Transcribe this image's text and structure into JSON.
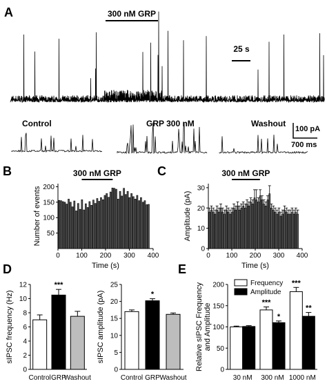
{
  "panel_labels": {
    "a": "A",
    "b": "B",
    "c": "C",
    "d": "D",
    "e": "E"
  },
  "panel_a": {
    "bar_label": "300 nM GRP",
    "time_scale": "25 s",
    "segments": [
      "Control",
      "GRP 300 nM",
      "Washout"
    ],
    "scale_current": "100 pA",
    "scale_time": "700 ms"
  },
  "chart_data": [
    {
      "id": "B",
      "type": "bar",
      "bar_label": "300 nM GRP",
      "bar_range": [
        100,
        230
      ],
      "xlabel": "Time (s)",
      "ylabel": "Number of events",
      "xlim": [
        0,
        400
      ],
      "ylim": [
        0,
        210
      ],
      "xticks": [
        "0",
        "100",
        "200",
        "300",
        "400"
      ],
      "yticks": [
        "50",
        "100",
        "150",
        "200"
      ],
      "x": [
        5,
        13,
        21,
        29,
        37,
        45,
        53,
        61,
        69,
        77,
        85,
        93,
        101,
        109,
        117,
        125,
        133,
        141,
        149,
        157,
        165,
        173,
        181,
        189,
        197,
        205,
        213,
        221,
        229,
        237,
        245,
        253,
        261,
        269,
        277,
        285,
        293,
        301,
        309,
        317,
        325,
        333,
        341,
        349,
        357,
        365,
        373,
        381
      ],
      "values": [
        156,
        155,
        152,
        150,
        144,
        160,
        150,
        135,
        154,
        122,
        146,
        127,
        158,
        125,
        145,
        133,
        152,
        140,
        157,
        146,
        162,
        153,
        165,
        158,
        172,
        178,
        166,
        183,
        196,
        195,
        192,
        160,
        185,
        170,
        195,
        175,
        185,
        165,
        178,
        168,
        160,
        172,
        155,
        165,
        150,
        155,
        142,
        143
      ]
    },
    {
      "id": "C",
      "type": "bar",
      "bar_label": "300 nM GRP",
      "bar_range": [
        100,
        220
      ],
      "xlabel": "Time (s)",
      "ylabel": "Amplitude (pA)",
      "xlim": [
        0,
        400
      ],
      "ylim": [
        0,
        32
      ],
      "xticks": [
        "0",
        "100",
        "200",
        "300",
        "400"
      ],
      "yticks": [
        "0",
        "10",
        "20",
        "30"
      ],
      "x": [
        5,
        13,
        21,
        29,
        37,
        45,
        53,
        61,
        69,
        77,
        85,
        93,
        101,
        109,
        117,
        125,
        133,
        141,
        149,
        157,
        165,
        173,
        181,
        189,
        197,
        205,
        213,
        221,
        229,
        237,
        245,
        253,
        261,
        269,
        277,
        285,
        293,
        301,
        309,
        317,
        325,
        333,
        341,
        349,
        357,
        365,
        373,
        381
      ],
      "values": [
        18,
        19,
        18,
        17,
        19,
        18,
        20,
        18,
        17,
        19,
        18,
        17,
        18,
        20,
        19,
        21,
        19,
        20,
        21,
        20,
        22,
        21,
        23,
        22,
        25,
        24,
        23,
        26,
        24,
        22,
        21,
        24,
        27,
        20,
        19,
        18,
        17,
        18,
        16,
        17,
        19,
        18,
        17,
        17,
        18,
        17,
        18,
        17
      ],
      "errors": [
        2,
        2,
        2,
        2,
        2,
        2,
        2,
        2,
        2,
        2,
        2,
        2,
        2,
        2,
        2,
        2,
        2,
        2,
        2,
        2,
        2,
        2,
        2,
        2,
        4,
        5,
        2,
        3,
        2,
        2,
        2,
        2,
        4,
        2,
        2,
        2,
        2,
        2,
        2,
        2,
        2,
        2,
        2,
        2,
        2,
        2,
        2,
        2
      ]
    },
    {
      "id": "D1",
      "type": "bar",
      "categories": [
        "Control",
        "GRP",
        "Washout"
      ],
      "values": [
        7.0,
        10.5,
        7.5
      ],
      "errors": [
        0.7,
        0.8,
        0.7
      ],
      "colors": [
        "#ffffff",
        "#000000",
        "#bdbdbd"
      ],
      "annotations": [
        "",
        "***",
        ""
      ],
      "ylabel": "sIPSC frequency (Hz)",
      "ylim": [
        0,
        12
      ],
      "yticks": [
        "0",
        "2",
        "4",
        "6",
        "8",
        "10",
        "12"
      ]
    },
    {
      "id": "D2",
      "type": "bar",
      "categories": [
        "Control",
        "GRP",
        "Washout"
      ],
      "values": [
        17.0,
        20.2,
        16.2
      ],
      "errors": [
        0.5,
        0.6,
        0.4
      ],
      "colors": [
        "#ffffff",
        "#000000",
        "#bdbdbd"
      ],
      "annotations": [
        "",
        "*",
        ""
      ],
      "ylabel": "sIPSC amplitude (pA)",
      "ylim": [
        0,
        25
      ],
      "yticks": [
        "0",
        "5",
        "10",
        "15",
        "20",
        "25"
      ]
    },
    {
      "id": "E",
      "type": "bar",
      "categories": [
        "30 nM",
        "300 nM",
        "1000 nM"
      ],
      "series": [
        {
          "name": "Frequency",
          "values": [
            100,
            140,
            183
          ],
          "errors": [
            2,
            7,
            10
          ],
          "annotations": [
            "",
            "***",
            "***"
          ],
          "color": "#ffffff"
        },
        {
          "name": "Amplitude",
          "values": [
            101,
            110,
            125
          ],
          "errors": [
            2,
            4,
            9
          ],
          "annotations": [
            "",
            "*",
            "**"
          ],
          "color": "#000000"
        }
      ],
      "ylabel": "Relative sIPSC Frequency and Amplitude",
      "ylabel_lines": [
        "Relative sIPSC Frequency",
        "and Amplitude"
      ],
      "ylim": [
        0,
        200
      ],
      "yticks": [
        "0",
        "50",
        "100",
        "150",
        "200"
      ],
      "legend": "top-left"
    }
  ]
}
